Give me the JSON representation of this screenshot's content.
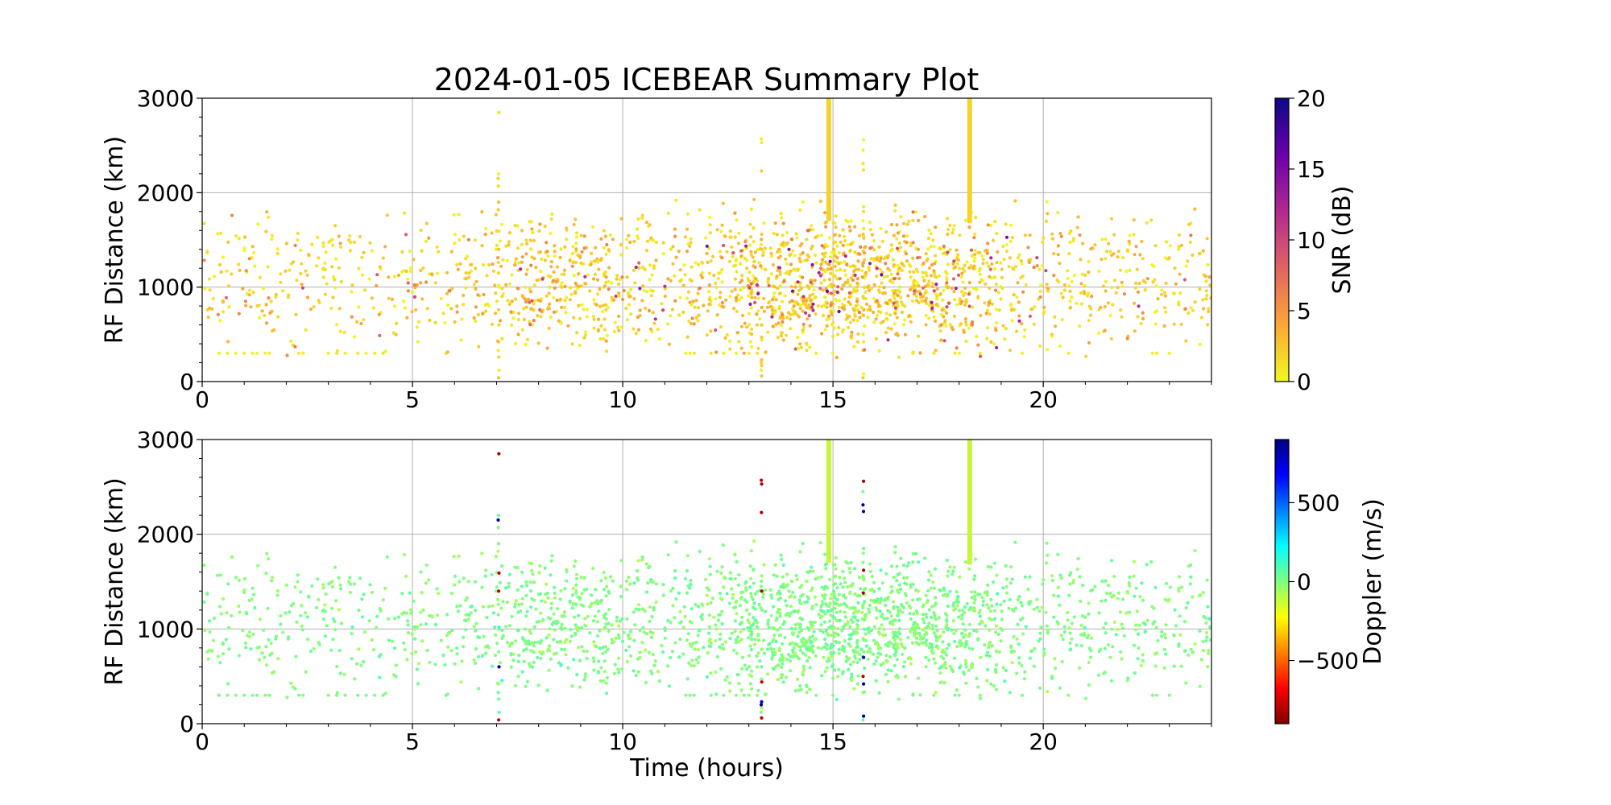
{
  "title": "2024-01-05 ICEBEAR Summary Plot",
  "chart_data": [
    {
      "type": "scatter",
      "panel": "snr",
      "xlabel": "",
      "ylabel": "RF Distance (km)",
      "xlim": [
        0,
        24
      ],
      "ylim": [
        0,
        3000
      ],
      "xticks": [
        0,
        5,
        10,
        15,
        20
      ],
      "yticks": [
        0,
        1000,
        2000,
        3000
      ],
      "grid": true,
      "colorbar": {
        "label": "SNR (dB)",
        "range": [
          0,
          20
        ],
        "ticks": [
          0,
          5,
          10,
          15,
          20
        ],
        "tick_labels": [
          "0",
          "5",
          "10",
          "15",
          "20"
        ],
        "colormap": [
          "#f0f921",
          "#fca636",
          "#e16462",
          "#b12a90",
          "#6a00a8",
          "#0d0887"
        ]
      },
      "vertical_streaks": [
        {
          "x": 14.9,
          "y_range": [
            1700,
            3000
          ],
          "color": "#f5d42a"
        },
        {
          "x": 18.25,
          "y_range": [
            1680,
            3000
          ],
          "color": "#f5d42a"
        }
      ],
      "point_count_approx": 2400
    },
    {
      "type": "scatter",
      "panel": "doppler",
      "xlabel": "Time (hours)",
      "ylabel": "RF Distance (km)",
      "xlim": [
        0,
        24
      ],
      "ylim": [
        0,
        3000
      ],
      "xticks": [
        0,
        5,
        10,
        15,
        20
      ],
      "yticks": [
        0,
        1000,
        2000,
        3000
      ],
      "grid": true,
      "colorbar": {
        "label": "Doppler (m/s)",
        "range": [
          -900,
          900
        ],
        "ticks": [
          -500,
          0,
          500
        ],
        "tick_labels": [
          "−500",
          "0",
          "500"
        ],
        "colormap": [
          "#7f0000",
          "#ff0000",
          "#ff8000",
          "#ffff00",
          "#80ff80",
          "#00ffff",
          "#0080ff",
          "#0000ff",
          "#00007f"
        ]
      },
      "vertical_streaks": [
        {
          "x": 14.9,
          "y_range": [
            1700,
            3000
          ],
          "color": "#c8f53c"
        },
        {
          "x": 18.25,
          "y_range": [
            1680,
            3000
          ],
          "color": "#c8f53c"
        }
      ],
      "point_count_approx": 2400
    }
  ]
}
